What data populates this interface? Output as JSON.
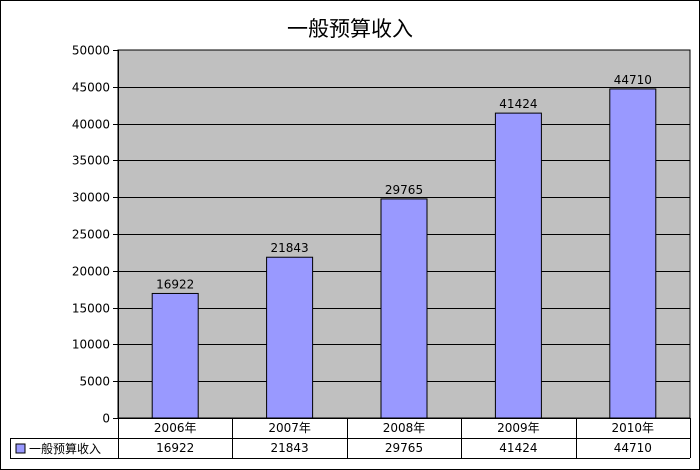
{
  "chart_data": {
    "type": "bar",
    "title": "一般预算收入",
    "xlabel": "",
    "ylabel": "",
    "categories": [
      "2006年",
      "2007年",
      "2008年",
      "2009年",
      "2010年"
    ],
    "series": [
      {
        "name": "一般预算收入",
        "values": [
          16922,
          21843,
          29765,
          41424,
          44710
        ]
      }
    ],
    "ylim": [
      0,
      50000
    ],
    "yticks": [
      0,
      5000,
      10000,
      15000,
      20000,
      25000,
      30000,
      35000,
      40000,
      45000,
      50000
    ],
    "grid": true,
    "legend": "data-table-left",
    "data_labels": true,
    "colors": {
      "bar_fill": "#9999ff",
      "bar_stroke": "#000000",
      "plot_bg": "#c0c0c0",
      "grid": "#000000"
    }
  }
}
